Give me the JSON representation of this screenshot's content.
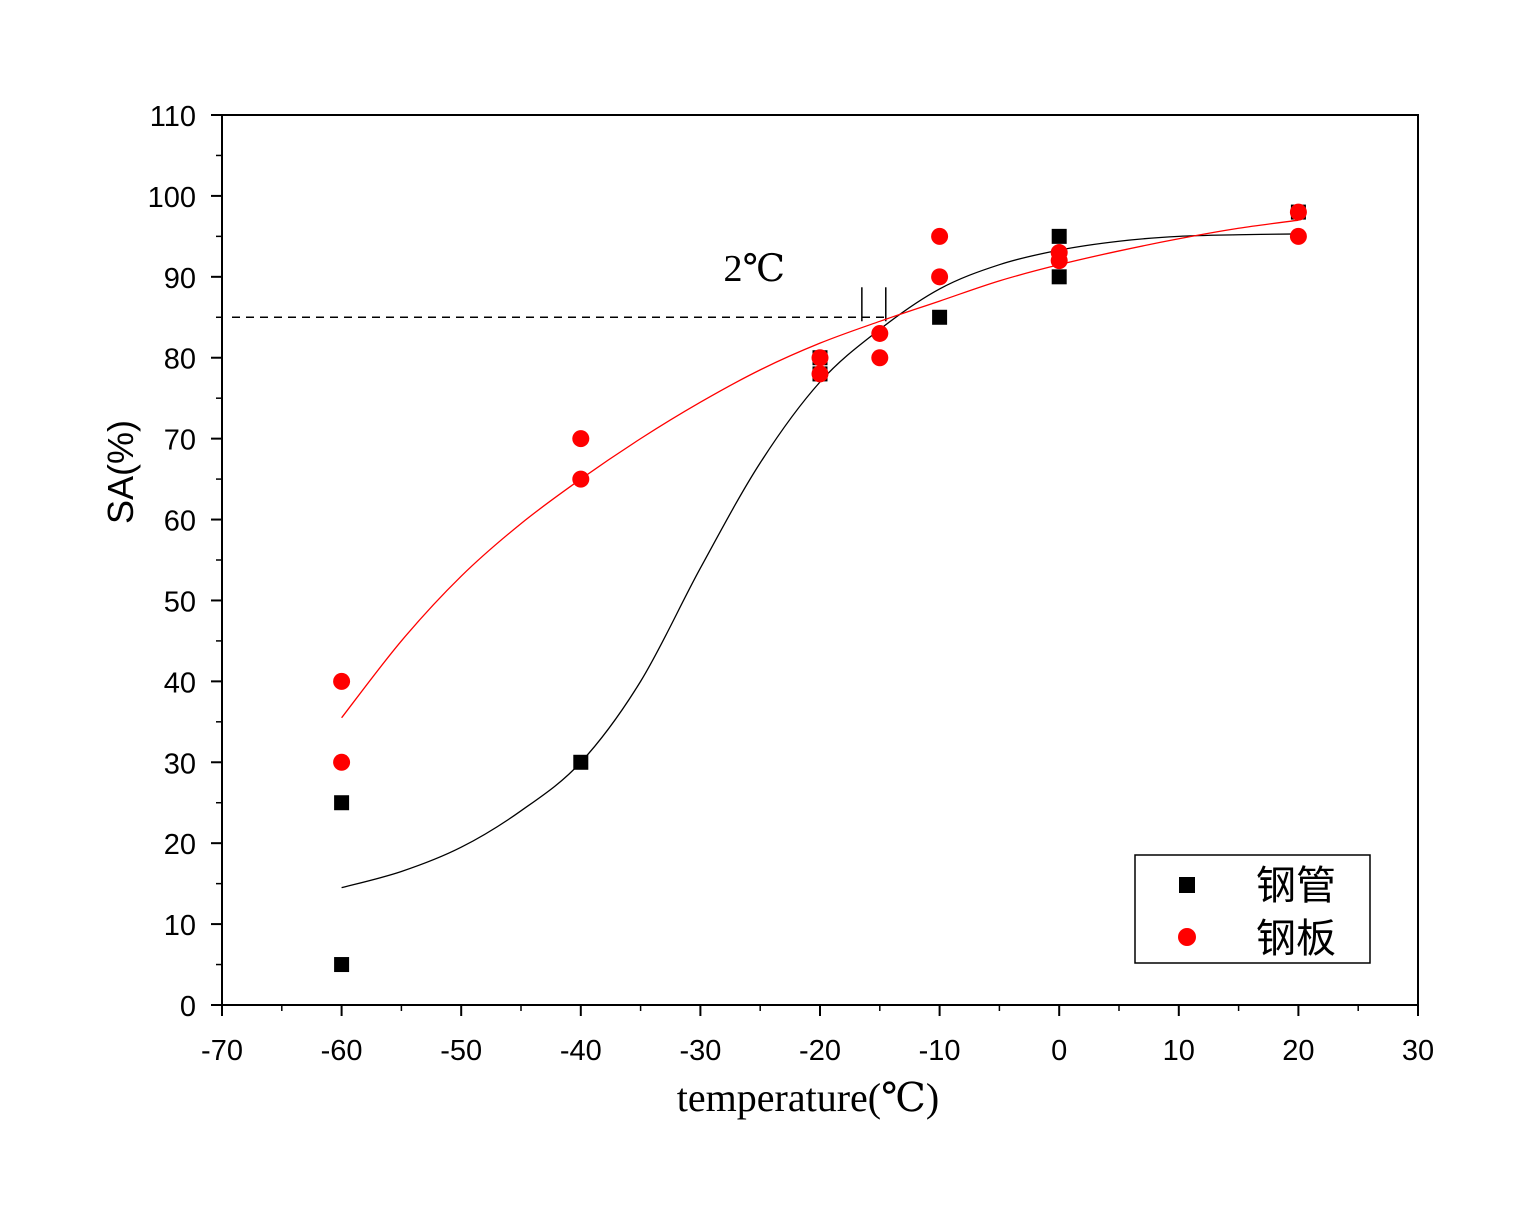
{
  "chart_data": {
    "type": "scatter",
    "xlabel": "temperature(℃)",
    "ylabel": "SA(%)",
    "xlim": [
      -70,
      30
    ],
    "ylim": [
      0,
      110
    ],
    "x_ticks": [
      -70,
      -60,
      -50,
      -40,
      -30,
      -20,
      -10,
      0,
      10,
      20,
      30
    ],
    "y_ticks": [
      0,
      10,
      20,
      30,
      40,
      50,
      60,
      70,
      80,
      90,
      100,
      110
    ],
    "grid": false,
    "legend_position": "bottom-right",
    "reference_line": {
      "y": 85,
      "style": "dashed"
    },
    "annotation": {
      "text": "2℃",
      "x": -25.5,
      "y": 89.5
    },
    "arrow_markers_x": [
      -16.5,
      -14.5
    ],
    "series": [
      {
        "name": "钢管",
        "marker": "square",
        "color": "#000000",
        "points": [
          [
            -60,
            25
          ],
          [
            -60,
            5
          ],
          [
            -40,
            30
          ],
          [
            -20,
            80
          ],
          [
            -20,
            78
          ],
          [
            -10,
            85
          ],
          [
            0,
            95
          ],
          [
            0,
            90
          ],
          [
            20,
            98
          ]
        ],
        "fit_curve": [
          [
            -60,
            14.5
          ],
          [
            -55,
            16.5
          ],
          [
            -50,
            19.5
          ],
          [
            -45,
            24
          ],
          [
            -40,
            30
          ],
          [
            -35,
            40
          ],
          [
            -30,
            54
          ],
          [
            -25,
            67
          ],
          [
            -20,
            77
          ],
          [
            -15,
            83.5
          ],
          [
            -10,
            88.5
          ],
          [
            -5,
            91.5
          ],
          [
            0,
            93.3
          ],
          [
            5,
            94.4
          ],
          [
            10,
            95
          ],
          [
            15,
            95.2
          ],
          [
            20,
            95.3
          ]
        ]
      },
      {
        "name": "钢板",
        "marker": "circle",
        "color": "#ff0000",
        "points": [
          [
            -60,
            40
          ],
          [
            -60,
            30
          ],
          [
            -40,
            70
          ],
          [
            -40,
            65
          ],
          [
            -20,
            80
          ],
          [
            -20,
            78
          ],
          [
            -15,
            83
          ],
          [
            -15,
            80
          ],
          [
            -10,
            95
          ],
          [
            -10,
            90
          ],
          [
            0,
            93
          ],
          [
            0,
            92
          ],
          [
            20,
            98
          ],
          [
            20,
            95
          ]
        ],
        "fit_curve": [
          [
            -60,
            35.5
          ],
          [
            -55,
            45
          ],
          [
            -50,
            53
          ],
          [
            -45,
            59.5
          ],
          [
            -40,
            65
          ],
          [
            -35,
            70
          ],
          [
            -30,
            74.5
          ],
          [
            -25,
            78.5
          ],
          [
            -20,
            81.8
          ],
          [
            -15,
            84.5
          ],
          [
            -10,
            87
          ],
          [
            -5,
            89.5
          ],
          [
            0,
            91.5
          ],
          [
            5,
            93.2
          ],
          [
            10,
            94.7
          ],
          [
            15,
            96
          ],
          [
            20,
            97
          ]
        ]
      }
    ]
  }
}
